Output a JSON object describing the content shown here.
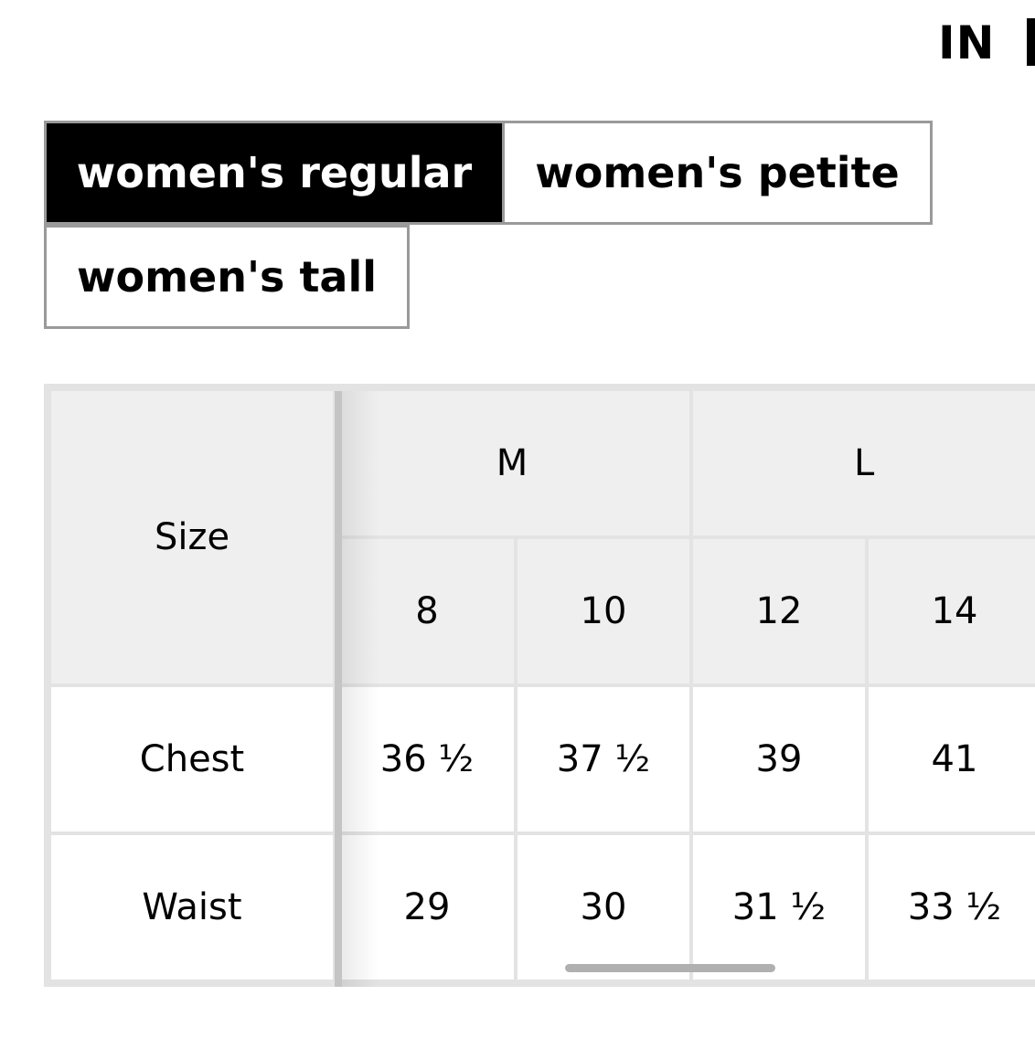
{
  "unit_toggle": {
    "selected": "IN"
  },
  "tabs": [
    {
      "label": "women's regular",
      "active": true
    },
    {
      "label": "women's petite",
      "active": false
    },
    {
      "label": "women's tall",
      "active": false
    }
  ],
  "table": {
    "row_header": "Size",
    "groups": [
      "M",
      "L"
    ],
    "sizes": [
      "8",
      "10",
      "12",
      "14"
    ],
    "rows": [
      {
        "label": "Chest",
        "values": [
          "36 ½",
          "37 ½",
          "39",
          "41"
        ]
      },
      {
        "label": "Waist",
        "values": [
          "29",
          "30",
          "31 ½",
          "33 ½"
        ]
      }
    ]
  },
  "colors": {
    "active_tab": "#000000",
    "header_bg": "#efefef",
    "border": "#e3e3e3"
  }
}
